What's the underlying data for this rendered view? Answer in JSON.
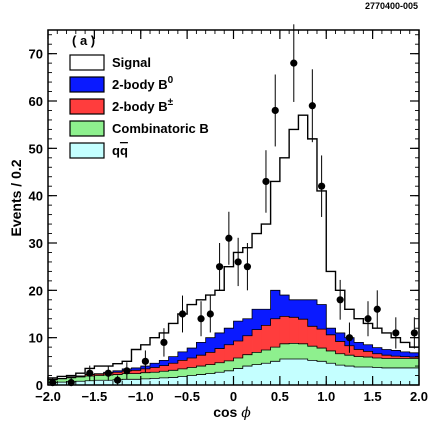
{
  "figure_id": "2770400-005",
  "panel_label": "( a )",
  "chart_data": {
    "type": "area",
    "xlabel": "cos",
    "xlabel_symbol": "ϕ",
    "ylabel": "Events / 0.2",
    "xlim": [
      -2.0,
      2.0
    ],
    "ylim": [
      0,
      75
    ],
    "x_ticks": [
      -2.0,
      -1.5,
      -1.0,
      -0.5,
      0,
      0.5,
      1.0,
      1.5,
      2.0
    ],
    "x_tick_labels": [
      "−2.0",
      "−1.5",
      "−1.0",
      "−0.5",
      "0",
      "0.5",
      "1.0",
      "1.5",
      "2.0"
    ],
    "y_ticks": [
      0,
      10,
      20,
      30,
      40,
      50,
      60,
      70
    ],
    "y_tick_labels": [
      "0",
      "10",
      "20",
      "30",
      "40",
      "50",
      "60",
      "70"
    ],
    "grid": false,
    "legend_position": "top-left",
    "bin_edges": [
      -2.0,
      -1.9,
      -1.8,
      -1.7,
      -1.6,
      -1.5,
      -1.4,
      -1.3,
      -1.2,
      -1.1,
      -1.0,
      -0.9,
      -0.8,
      -0.7,
      -0.6,
      -0.5,
      -0.4,
      -0.3,
      -0.2,
      -0.1,
      0.0,
      0.1,
      0.2,
      0.3,
      0.4,
      0.5,
      0.6,
      0.7,
      0.8,
      0.9,
      1.0,
      1.1,
      1.2,
      1.3,
      1.4,
      1.5,
      1.6,
      1.7,
      1.8,
      1.9,
      2.0
    ],
    "legend": [
      {
        "key": "signal",
        "label": "Signal",
        "sup": "",
        "color": "#ffffff"
      },
      {
        "key": "b0",
        "label": "2-body B",
        "sup": "0",
        "color": "#0a1aff"
      },
      {
        "key": "bpm",
        "label": "2-body B",
        "sup": "±",
        "color": "#ff3d3d"
      },
      {
        "key": "comb",
        "label": "Combinatoric B",
        "sup": "",
        "color": "#8ef08e"
      },
      {
        "key": "qq",
        "label": "q",
        "sup": "",
        "color": "#c4ffff"
      }
    ],
    "stack": {
      "qq": [
        0.5,
        0.6,
        0.7,
        0.8,
        0.9,
        1.0,
        1.0,
        1.1,
        1.2,
        1.2,
        1.3,
        1.4,
        1.5,
        1.6,
        1.8,
        2.0,
        2.2,
        2.4,
        2.7,
        3.0,
        3.5,
        4.0,
        4.3,
        4.6,
        5.0,
        5.5,
        5.5,
        5.5,
        5.2,
        5.0,
        4.6,
        4.2,
        4.0,
        3.8,
        3.8,
        3.7,
        3.6,
        3.6,
        3.6,
        3.6
      ],
      "comb": [
        0.6,
        0.7,
        0.8,
        0.9,
        1.0,
        1.0,
        1.1,
        1.1,
        1.2,
        1.2,
        1.3,
        1.3,
        1.4,
        1.5,
        1.6,
        1.7,
        1.8,
        1.9,
        2.0,
        2.1,
        2.2,
        2.4,
        2.6,
        2.8,
        3.0,
        3.2,
        3.3,
        3.2,
        3.0,
        2.8,
        2.6,
        2.4,
        2.3,
        2.2,
        2.1,
        2.0,
        2.0,
        2.0,
        2.0,
        2.0
      ],
      "bpm": [
        0.1,
        0.1,
        0.2,
        0.2,
        0.3,
        0.3,
        0.4,
        0.5,
        0.6,
        0.7,
        0.8,
        1.0,
        1.2,
        1.5,
        1.8,
        2.0,
        2.3,
        2.6,
        3.0,
        3.4,
        3.6,
        4.0,
        4.8,
        5.2,
        6.0,
        5.8,
        5.5,
        5.2,
        4.2,
        4.0,
        3.4,
        2.6,
        2.0,
        1.5,
        1.2,
        0.9,
        0.7,
        0.5,
        0.4,
        0.3
      ],
      "b0": [
        0.0,
        0.0,
        0.0,
        0.0,
        0.1,
        0.1,
        0.2,
        0.3,
        0.4,
        0.5,
        0.6,
        0.9,
        1.1,
        1.4,
        1.8,
        2.1,
        2.7,
        3.1,
        3.3,
        3.5,
        4.2,
        3.6,
        4.3,
        3.4,
        6.0,
        4.5,
        3.7,
        4.1,
        5.6,
        5.2,
        1.4,
        1.8,
        1.7,
        1.5,
        1.4,
        1.3,
        1.2,
        1.2,
        1.0,
        0.9
      ]
    },
    "signal_total": [
      1.5,
      1.8,
      2.0,
      2.5,
      3.5,
      4.0,
      4.0,
      4.5,
      5.0,
      7.5,
      8.5,
      10.0,
      11.0,
      13.0,
      15.0,
      17.0,
      18.0,
      19.0,
      20.0,
      25.0,
      28.0,
      29.0,
      32.0,
      34.0,
      43.0,
      48.0,
      54.0,
      57.0,
      52.0,
      41.0,
      24.0,
      20.0,
      16.0,
      14.0,
      13.0,
      12.0,
      11.0,
      10.0,
      9.0,
      8.0
    ],
    "data_points": [
      {
        "x": -1.95,
        "y": 0.5,
        "err": 1.0
      },
      {
        "x": -1.75,
        "y": 0.5,
        "err": 1.0
      },
      {
        "x": -1.55,
        "y": 2.5,
        "err": 1.6
      },
      {
        "x": -1.35,
        "y": 2.5,
        "err": 1.6
      },
      {
        "x": -1.25,
        "y": 1.0,
        "err": 1.0
      },
      {
        "x": -1.15,
        "y": 3.0,
        "err": 1.8
      },
      {
        "x": -0.95,
        "y": 5.0,
        "err": 2.3
      },
      {
        "x": -0.75,
        "y": 9.0,
        "err": 3.0
      },
      {
        "x": -0.55,
        "y": 15.0,
        "err": 3.9
      },
      {
        "x": -0.35,
        "y": 14.0,
        "err": 3.7
      },
      {
        "x": -0.25,
        "y": 15.0,
        "err": 3.9
      },
      {
        "x": -0.15,
        "y": 25.0,
        "err": 5.0
      },
      {
        "x": -0.05,
        "y": 31.0,
        "err": 5.6
      },
      {
        "x": 0.05,
        "y": 26.0,
        "err": 5.1
      },
      {
        "x": 0.15,
        "y": 25.0,
        "err": 5.0
      },
      {
        "x": 0.35,
        "y": 43.0,
        "err": 6.6
      },
      {
        "x": 0.45,
        "y": 58.0,
        "err": 7.6
      },
      {
        "x": 0.65,
        "y": 68.0,
        "err": 8.2
      },
      {
        "x": 0.85,
        "y": 59.0,
        "err": 7.7
      },
      {
        "x": 0.95,
        "y": 42.0,
        "err": 6.5
      },
      {
        "x": 1.15,
        "y": 18.0,
        "err": 4.2
      },
      {
        "x": 1.25,
        "y": 10.0,
        "err": 3.2
      },
      {
        "x": 1.45,
        "y": 14.0,
        "err": 3.7
      },
      {
        "x": 1.55,
        "y": 16.0,
        "err": 4.0
      },
      {
        "x": 1.75,
        "y": 11.0,
        "err": 3.3
      },
      {
        "x": 1.95,
        "y": 11.0,
        "err": 3.3
      }
    ]
  }
}
